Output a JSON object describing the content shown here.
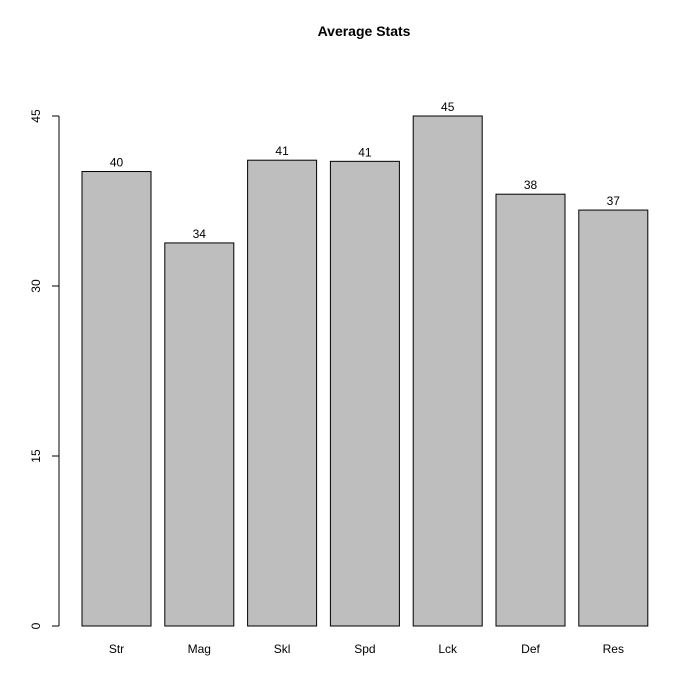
{
  "chart_data": {
    "type": "bar",
    "title": "Average Stats",
    "xlabel": "",
    "ylabel": "",
    "categories": [
      "Str",
      "Mag",
      "Skl",
      "Spd",
      "Lck",
      "Def",
      "Res"
    ],
    "values": [
      40.1,
      33.8,
      41.1,
      41.0,
      45.0,
      38.1,
      36.7
    ],
    "data_labels": [
      "40",
      "34",
      "41",
      "41",
      "45",
      "38",
      "37"
    ],
    "ylim": [
      0,
      45
    ],
    "yticks": [
      0,
      15,
      30,
      45
    ],
    "grid": false,
    "bar_color": "#bebebe",
    "bar_outline": "#000000"
  }
}
